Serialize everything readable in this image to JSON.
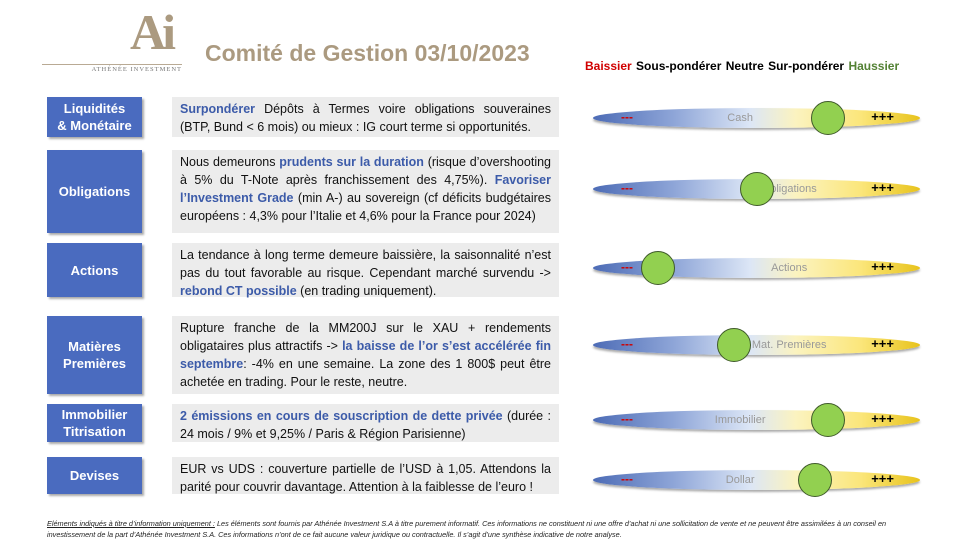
{
  "logo": {
    "mark": "Ai",
    "name": "ATHÉNÉE INVESTMENT"
  },
  "title": "Comité de Gestion 03/10/2023",
  "legend": {
    "baissier": "Baissier",
    "sous": "Sous-pondérer",
    "neutre": "Neutre",
    "sur": "Sur-pondérer",
    "haussier": "Haussier"
  },
  "scale": {
    "minus": "---",
    "plus": "+++"
  },
  "colors": {
    "label_bg": "#4a6bbf",
    "knob": "#92d050",
    "highlight": "#3c5ba9"
  },
  "rows": [
    {
      "label1": "Liquidités",
      "label2": "& Monétaire",
      "parts": [
        {
          "t": "Surpondérer",
          "h": true
        },
        {
          "t": " Dépôts à Termes voire obligations souveraines (BTP, Bund < 6 mois) ou mieux : IG court terme si opportunités.",
          "h": false
        }
      ],
      "slider_name": "Cash",
      "position": 0.72
    },
    {
      "label1": "Obligations",
      "label2": "",
      "parts": [
        {
          "t": "Nous demeurons ",
          "h": false
        },
        {
          "t": "prudents sur la duration",
          "h": true
        },
        {
          "t": " (risque d’overshooting à 5% du T-Note après franchissement des 4,75%). ",
          "h": false
        },
        {
          "t": "Favoriser l’Investment Grade",
          "h": true
        },
        {
          "t": " (min A-) au sovereign (cf déficits budgétaires européens : 4,3% pour l’Italie et 4,6% pour la France pour 2024)",
          "h": false
        }
      ],
      "slider_name": "Obligations",
      "position": 0.5
    },
    {
      "label1": "Actions",
      "label2": "",
      "parts": [
        {
          "t": "La tendance à long terme demeure baissière, la saisonnalité n’est pas du tout favorable au risque. Cependant marché survendu -> ",
          "h": false
        },
        {
          "t": "rebond CT possible",
          "h": true
        },
        {
          "t": " (en trading uniquement).",
          "h": false
        }
      ],
      "slider_name": "Actions",
      "position": 0.2
    },
    {
      "label1": "Matières",
      "label2": "Premières",
      "parts": [
        {
          "t": "Rupture franche de la MM200J sur le XAU + rendements obligataires plus attractifs  -> ",
          "h": false
        },
        {
          "t": "la baisse de l’or s’est accélérée fin septembre",
          "h": true
        },
        {
          "t": ": -4% en une semaine. La zone des 1 800$ peut être achetée en trading. Pour le reste, neutre.",
          "h": false
        }
      ],
      "slider_name": "Mat. Premières",
      "position": 0.43
    },
    {
      "label1": "Immobilier",
      "label2": "Titrisation",
      "parts": [
        {
          "t": "2 émissions en cours de souscription de dette privée",
          "h": true
        },
        {
          "t": " (durée : 24 mois / 9% et 9,25% / Paris & Région Parisienne)",
          "h": false
        }
      ],
      "slider_name": "Immobilier",
      "position": 0.72
    },
    {
      "label1": "Devises",
      "label2": "",
      "parts": [
        {
          "t": "EUR vs UDS : couverture partielle de l’USD à 1,05. Attendons la parité pour couvrir davantage. Attention à la faiblesse de l’euro !",
          "h": false
        }
      ],
      "slider_name": "Dollar",
      "position": 0.68
    }
  ],
  "footer": {
    "lead": "Eléments indiqués à titre d’information uniquement :",
    "body": " Les éléments sont fournis par Athénée Investment S.A à titre purement informatif. Ces informations ne constituent ni une offre d’achat ni une sollicitation de vente et ne peuvent être assimilées à un conseil en investissement de la part d’Athénée Investment S.A. Ces informations n’ont de ce fait aucune valeur juridique ou contractuelle. Il s’agit d’une synthèse indicative de notre analyse."
  }
}
